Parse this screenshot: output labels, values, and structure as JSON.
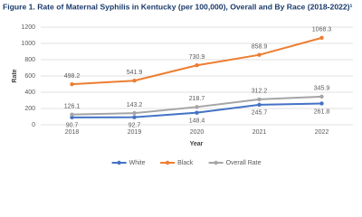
{
  "chart_data": {
    "type": "line",
    "title": "Figure 1. Rate of Maternal Syphilis in Kentucky (per 100,000), Overall and By Race (2018-2022)¹",
    "x_label": "Year",
    "y_label": "Rate",
    "categories": [
      "2018",
      "2019",
      "2020",
      "2021",
      "2022"
    ],
    "series": [
      {
        "name": "White",
        "color": "#4472c4",
        "values": [
          90.7,
          92.7,
          148.4,
          245.7,
          261.8
        ]
      },
      {
        "name": "Black",
        "color": "#ed7d31",
        "values": [
          498.2,
          541.9,
          730.9,
          858.9,
          1068.3
        ]
      },
      {
        "name": "Overall Rate",
        "color": "#a5a5a5",
        "values": [
          126.1,
          143.2,
          218.7,
          312.2,
          345.9
        ]
      }
    ],
    "ylim": [
      0,
      1200
    ],
    "yticks": [
      0,
      200,
      400,
      600,
      800,
      1000,
      1200
    ],
    "grid": true,
    "legend": "bottom"
  }
}
